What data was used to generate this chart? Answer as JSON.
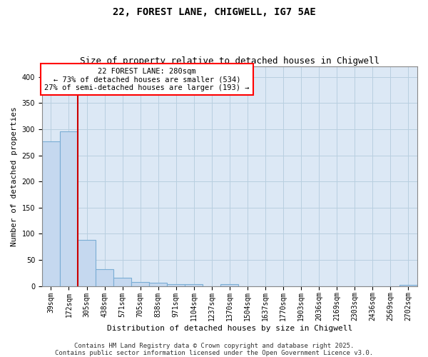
{
  "title1": "22, FOREST LANE, CHIGWELL, IG7 5AE",
  "title2": "Size of property relative to detached houses in Chigwell",
  "xlabel": "Distribution of detached houses by size in Chigwell",
  "ylabel": "Number of detached properties",
  "categories": [
    "39sqm",
    "172sqm",
    "305sqm",
    "438sqm",
    "571sqm",
    "705sqm",
    "838sqm",
    "971sqm",
    "1104sqm",
    "1237sqm",
    "1370sqm",
    "1504sqm",
    "1637sqm",
    "1770sqm",
    "1903sqm",
    "2036sqm",
    "2169sqm",
    "2303sqm",
    "2436sqm",
    "2569sqm",
    "2702sqm"
  ],
  "values": [
    277,
    296,
    89,
    33,
    16,
    8,
    6,
    4,
    3,
    0,
    4,
    0,
    0,
    0,
    0,
    0,
    0,
    0,
    0,
    0,
    2
  ],
  "bar_color": "#c5d8ef",
  "bar_edge_color": "#7aadd4",
  "bar_linewidth": 0.8,
  "annotation_line1": "22 FOREST LANE: 280sqm",
  "annotation_line2": "← 73% of detached houses are smaller (534)",
  "annotation_line3": "27% of semi-detached houses are larger (193) →",
  "vline_x": 1.5,
  "vline_color": "#cc0000",
  "ylim": [
    0,
    420
  ],
  "yticks": [
    0,
    50,
    100,
    150,
    200,
    250,
    300,
    350,
    400
  ],
  "ax_facecolor": "#dce8f5",
  "background_color": "#ffffff",
  "grid_color": "#b8cfe0",
  "footer_text": "Contains HM Land Registry data © Crown copyright and database right 2025.\nContains public sector information licensed under the Open Government Licence v3.0.",
  "title1_fontsize": 10,
  "title2_fontsize": 9,
  "xlabel_fontsize": 8,
  "ylabel_fontsize": 8,
  "tick_fontsize": 7,
  "annotation_fontsize": 7.5,
  "footer_fontsize": 6.5
}
